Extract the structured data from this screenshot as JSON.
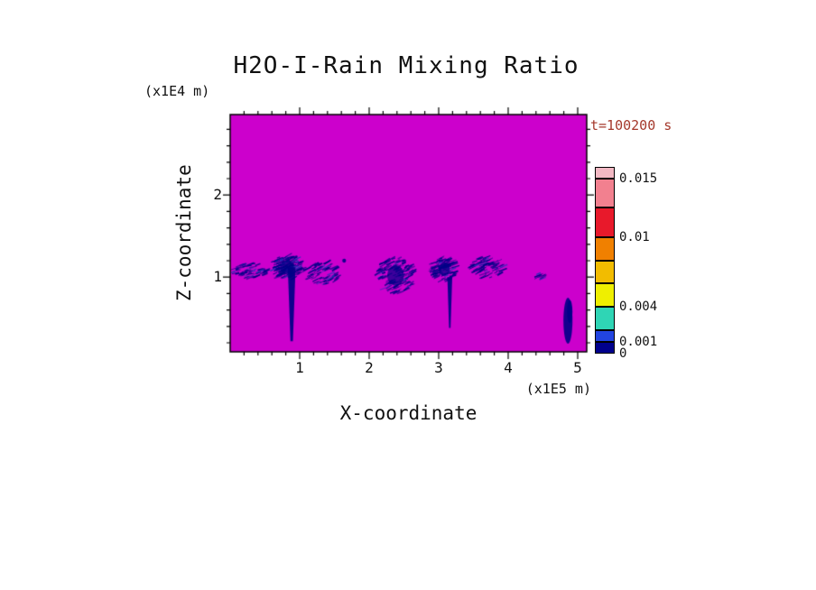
{
  "page": {
    "background": "#FFFFFF"
  },
  "chart_data": {
    "type": "heatmap",
    "title": "H2O-I-Rain Mixing Ratio",
    "time_label": "t=100200 s",
    "xlabel": "X-coordinate",
    "x_unit_label": "(x1E5 m)",
    "ylabel": "Z-coordinate",
    "y_unit_label": "(x1E4 m)",
    "x_range": [
      0,
      5.13
    ],
    "z_range": [
      0.09,
      2.98
    ],
    "x_ticks": [
      1,
      2,
      3,
      4,
      5
    ],
    "z_ticks": [
      1,
      2
    ],
    "minor_tick_step": 0.2,
    "grid": false,
    "legend_position": "right",
    "colors": {
      "field_background": "#CC00CC",
      "rain_feature": "#000087",
      "rain_feature_light": "#2233B8",
      "frame": "#000000",
      "text": "#111111",
      "time_label": "#A5392C"
    },
    "colorbar": {
      "min": 0,
      "max": 0.016,
      "tick_labels": [
        "0.015",
        "0.01",
        "0.004",
        "0.001",
        "0"
      ],
      "tick_values": [
        0.015,
        0.01,
        0.004,
        0.001,
        0
      ],
      "segments": [
        {
          "from": 0,
          "to": 0.001,
          "color": "#00008C"
        },
        {
          "from": 0.001,
          "to": 0.002,
          "color": "#2244E0"
        },
        {
          "from": 0.002,
          "to": 0.004,
          "color": "#2FD5B5"
        },
        {
          "from": 0.004,
          "to": 0.006,
          "color": "#EFEF00"
        },
        {
          "from": 0.006,
          "to": 0.008,
          "color": "#F2BC00"
        },
        {
          "from": 0.008,
          "to": 0.01,
          "color": "#F08000"
        },
        {
          "from": 0.01,
          "to": 0.0125,
          "color": "#E8192B"
        },
        {
          "from": 0.0125,
          "to": 0.015,
          "color": "#F2808F"
        },
        {
          "from": 0.015,
          "to": 0.016,
          "color": "#F2B8C3"
        }
      ]
    },
    "features": [
      {
        "kind": "wisps",
        "x": 0.3,
        "z": 1.08,
        "w": 0.52,
        "h": 0.18,
        "density": 70,
        "angle": 18,
        "core": false
      },
      {
        "kind": "wisps",
        "x": 0.82,
        "z": 1.12,
        "w": 0.44,
        "h": 0.3,
        "density": 170,
        "angle": 24,
        "core": true
      },
      {
        "kind": "shaft",
        "x": 0.885,
        "z_top": 1.12,
        "z_bot": 0.22,
        "w": 0.08
      },
      {
        "kind": "wisps",
        "x": 1.33,
        "z": 1.05,
        "w": 0.5,
        "h": 0.28,
        "density": 100,
        "angle": 28,
        "core": false
      },
      {
        "kind": "dot",
        "x": 1.64,
        "z": 1.2,
        "r": 0.028
      },
      {
        "kind": "wisps",
        "x": 2.38,
        "z": 1.02,
        "w": 0.55,
        "h": 0.44,
        "density": 160,
        "angle": 26,
        "core": true
      },
      {
        "kind": "wisps",
        "x": 3.08,
        "z": 1.1,
        "w": 0.36,
        "h": 0.3,
        "density": 130,
        "angle": 22,
        "core": true
      },
      {
        "kind": "shaft",
        "x": 3.16,
        "z_top": 1.0,
        "z_bot": 0.38,
        "w": 0.05
      },
      {
        "kind": "wisps",
        "x": 3.7,
        "z": 1.12,
        "w": 0.5,
        "h": 0.26,
        "density": 90,
        "angle": 24,
        "core": false
      },
      {
        "kind": "wisps",
        "x": 4.49,
        "z": 1.02,
        "w": 0.14,
        "h": 0.08,
        "density": 12,
        "angle": 20,
        "core": false
      },
      {
        "kind": "blob",
        "x": 4.86,
        "z": 0.47,
        "w": 0.13,
        "h": 0.56
      }
    ]
  }
}
